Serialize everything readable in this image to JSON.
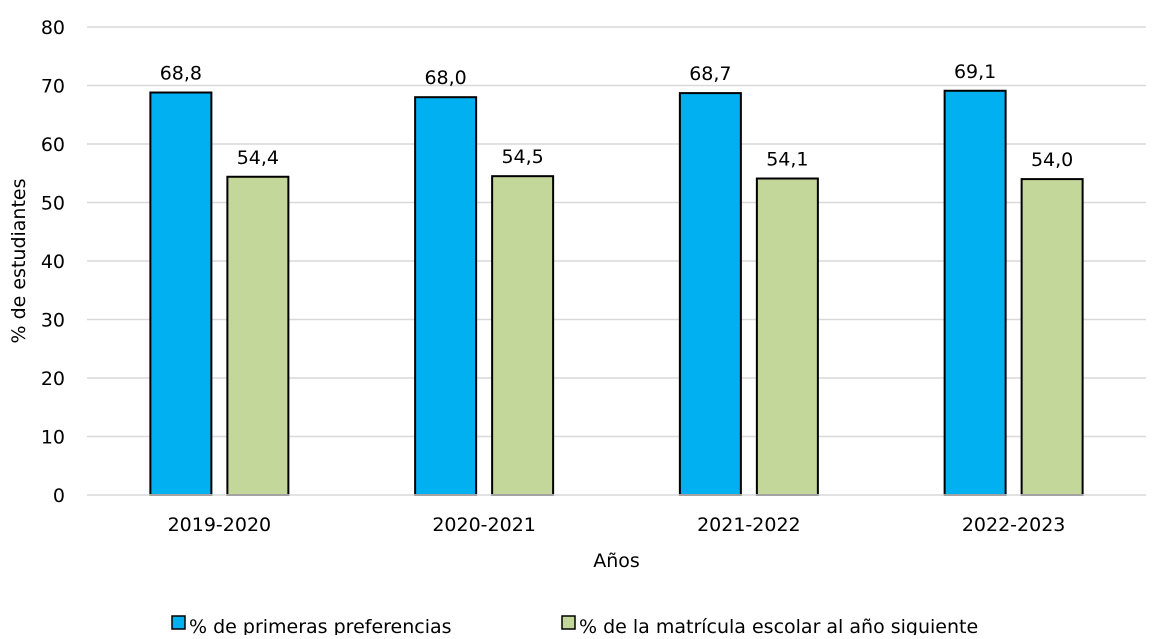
{
  "chart_data": {
    "type": "bar",
    "title": "",
    "xlabel": "Años",
    "ylabel": "% de estudiantes",
    "ylim": [
      0,
      80
    ],
    "yticks": [
      0,
      10,
      20,
      30,
      40,
      50,
      60,
      70,
      80
    ],
    "grid": true,
    "legend_position": "bottom",
    "categories": [
      "2019-2020",
      "2020-2021",
      "2021-2022",
      "2022-2023"
    ],
    "series": [
      {
        "name": "% de primeras preferencias",
        "color": "#00b0f0",
        "values": [
          68.8,
          68.0,
          68.7,
          69.1
        ],
        "labels": [
          "68,8",
          "68,0",
          "68,7",
          "69,1"
        ]
      },
      {
        "name": "% de la matrícula escolar al año siguiente",
        "color": "#c4d79b",
        "values": [
          54.4,
          54.5,
          54.1,
          54.0
        ],
        "labels": [
          "54,4",
          "54,5",
          "54,1",
          "54,0"
        ]
      }
    ]
  }
}
